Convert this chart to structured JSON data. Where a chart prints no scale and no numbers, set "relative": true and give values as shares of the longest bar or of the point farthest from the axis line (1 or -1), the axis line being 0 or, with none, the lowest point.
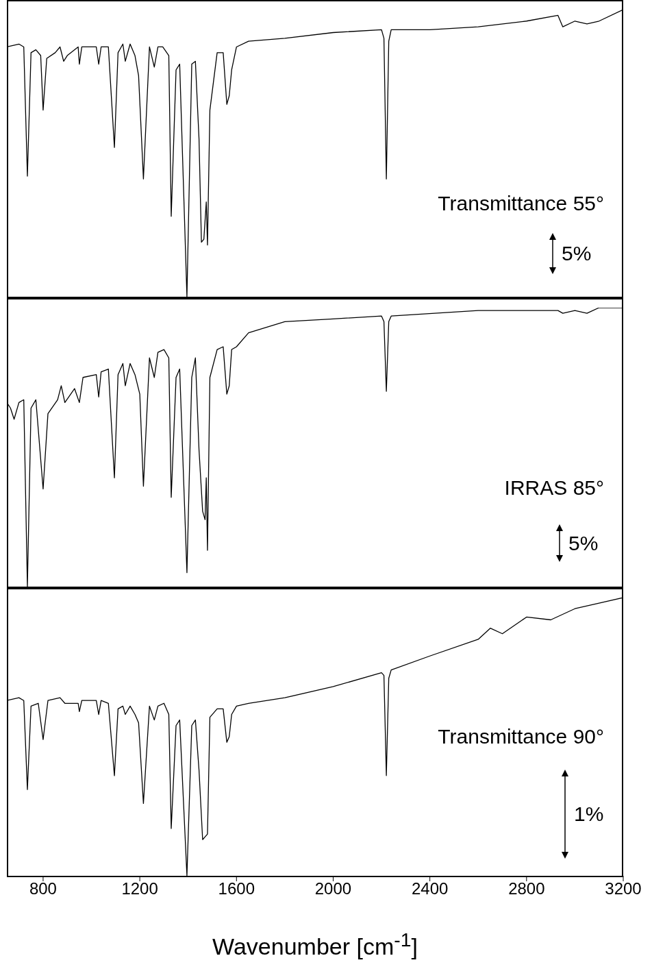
{
  "chart_data": [
    {
      "type": "line",
      "relative": true,
      "tick_labels": false,
      "xlim": [
        650,
        3200
      ],
      "xticks": [
        800,
        1200,
        1600,
        2000,
        2400,
        2800,
        3200
      ],
      "annotations": [
        "Transmittance 55°",
        "5%"
      ],
      "series": [
        {
          "color": "#000000",
          "x": [
            650,
            700,
            720,
            735,
            750,
            770,
            790,
            800,
            815,
            850,
            870,
            885,
            900,
            945,
            950,
            960,
            1020,
            1030,
            1040,
            1070,
            1095,
            1110,
            1130,
            1140,
            1160,
            1180,
            1195,
            1215,
            1240,
            1260,
            1275,
            1295,
            1320,
            1330,
            1350,
            1365,
            1395,
            1415,
            1430,
            1445,
            1455,
            1465,
            1475,
            1480,
            1490,
            1520,
            1545,
            1560,
            1570,
            1580,
            1600,
            1650,
            1800,
            2000,
            2200,
            2210,
            2220,
            2230,
            2240,
            2400,
            2600,
            2800,
            2930,
            2950,
            3000,
            3050,
            3100,
            3200
          ],
          "values": [
            0.87,
            0.88,
            0.87,
            0.42,
            0.85,
            0.86,
            0.84,
            0.65,
            0.83,
            0.85,
            0.87,
            0.82,
            0.84,
            0.87,
            0.81,
            0.87,
            0.87,
            0.81,
            0.87,
            0.87,
            0.52,
            0.85,
            0.88,
            0.82,
            0.88,
            0.84,
            0.77,
            0.41,
            0.87,
            0.8,
            0.87,
            0.87,
            0.84,
            0.28,
            0.79,
            0.81,
            0,
            0.81,
            0.82,
            0.55,
            0.19,
            0.2,
            0.33,
            0.18,
            0.65,
            0.85,
            0.85,
            0.67,
            0.7,
            0.79,
            0.87,
            0.89,
            0.9,
            0.92,
            0.93,
            0.9,
            0.41,
            0.89,
            0.93,
            0.93,
            0.94,
            0.96,
            0.98,
            0.94,
            0.96,
            0.95,
            0.96,
            1
          ]
        }
      ]
    },
    {
      "type": "line",
      "relative": true,
      "tick_labels": false,
      "xlim": [
        650,
        3200
      ],
      "xticks": [
        800,
        1200,
        1600,
        2000,
        2400,
        2800,
        3200
      ],
      "annotations": [
        "IRRAS 85°",
        "5%"
      ],
      "series": [
        {
          "color": "#000000",
          "x": [
            650,
            665,
            680,
            700,
            720,
            735,
            750,
            770,
            800,
            820,
            860,
            875,
            890,
            930,
            950,
            965,
            1020,
            1030,
            1040,
            1070,
            1095,
            1110,
            1130,
            1140,
            1160,
            1180,
            1200,
            1215,
            1240,
            1260,
            1275,
            1300,
            1320,
            1330,
            1350,
            1365,
            1395,
            1415,
            1430,
            1445,
            1460,
            1470,
            1475,
            1480,
            1490,
            1520,
            1545,
            1560,
            1570,
            1580,
            1600,
            1650,
            1800,
            2000,
            2200,
            2210,
            2220,
            2230,
            2240,
            2600,
            2930,
            2950,
            3000,
            3050,
            3100,
            3200
          ],
          "values": [
            0.66,
            0.64,
            0.6,
            0.66,
            0.67,
            0,
            0.64,
            0.67,
            0.35,
            0.62,
            0.67,
            0.72,
            0.66,
            0.71,
            0.66,
            0.75,
            0.76,
            0.68,
            0.77,
            0.78,
            0.39,
            0.76,
            0.8,
            0.72,
            0.8,
            0.76,
            0.69,
            0.36,
            0.82,
            0.75,
            0.84,
            0.85,
            0.82,
            0.32,
            0.75,
            0.78,
            0.05,
            0.75,
            0.82,
            0.49,
            0.27,
            0.24,
            0.39,
            0.13,
            0.75,
            0.85,
            0.86,
            0.69,
            0.72,
            0.85,
            0.86,
            0.91,
            0.95,
            0.96,
            0.97,
            0.95,
            0.7,
            0.95,
            0.97,
            0.99,
            0.99,
            0.98,
            0.99,
            0.98,
            1,
            1
          ]
        }
      ]
    },
    {
      "type": "line",
      "relative": true,
      "tick_labels": "x",
      "xlabel": "Wavenumber [cm$^{-1}$]",
      "xlim": [
        650,
        3200
      ],
      "xticks": [
        800,
        1200,
        1600,
        2000,
        2400,
        2800,
        3200
      ],
      "annotations": [
        "Transmittance 90°",
        "1%"
      ],
      "series": [
        {
          "color": "#000000",
          "x": [
            650,
            700,
            720,
            735,
            750,
            780,
            800,
            820,
            870,
            890,
            945,
            950,
            960,
            1020,
            1030,
            1040,
            1070,
            1095,
            1110,
            1130,
            1140,
            1160,
            1180,
            1195,
            1215,
            1240,
            1260,
            1275,
            1300,
            1320,
            1330,
            1350,
            1365,
            1395,
            1415,
            1430,
            1445,
            1460,
            1470,
            1480,
            1490,
            1520,
            1545,
            1560,
            1570,
            1580,
            1600,
            1650,
            1800,
            2000,
            2200,
            2210,
            2220,
            2230,
            2240,
            2400,
            2600,
            2650,
            2700,
            2800,
            2900,
            3000,
            3100,
            3200
          ],
          "values": [
            0.63,
            0.64,
            0.63,
            0.31,
            0.61,
            0.62,
            0.49,
            0.63,
            0.64,
            0.62,
            0.62,
            0.59,
            0.63,
            0.63,
            0.58,
            0.63,
            0.62,
            0.36,
            0.6,
            0.61,
            0.58,
            0.61,
            0.58,
            0.55,
            0.26,
            0.61,
            0.56,
            0.61,
            0.62,
            0.58,
            0.17,
            0.54,
            0.56,
            0,
            0.54,
            0.56,
            0.38,
            0.13,
            0.14,
            0.15,
            0.57,
            0.6,
            0.6,
            0.48,
            0.5,
            0.58,
            0.61,
            0.62,
            0.64,
            0.68,
            0.73,
            0.72,
            0.36,
            0.71,
            0.74,
            0.79,
            0.85,
            0.89,
            0.87,
            0.93,
            0.92,
            0.96,
            0.98,
            1
          ]
        }
      ]
    }
  ]
}
